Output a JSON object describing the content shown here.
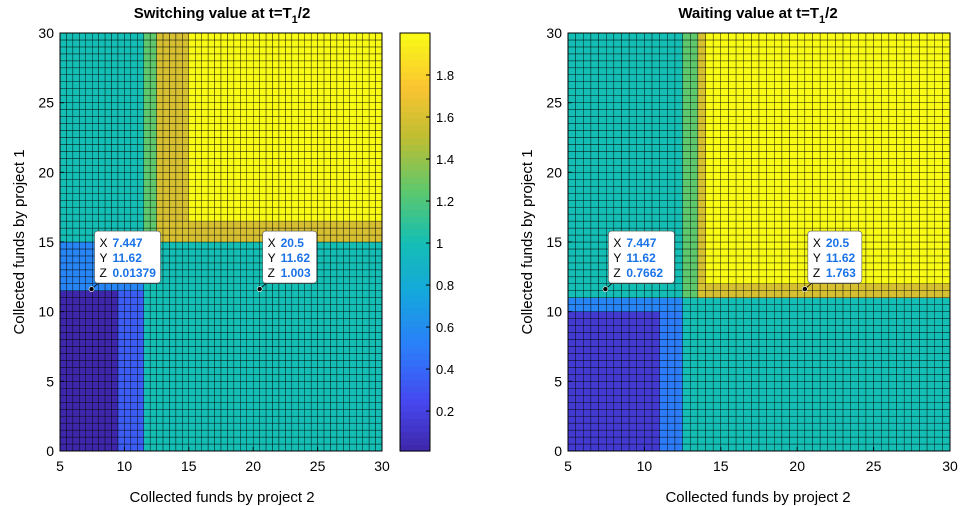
{
  "chart_data": [
    {
      "type": "heatmap",
      "title_main": "Switching value at t=T",
      "title_sub": "1",
      "title_end": "/2",
      "xlabel": "Collected funds by project 2",
      "ylabel": "Collected funds by project 1",
      "xlim": [
        5,
        30
      ],
      "ylim": [
        0,
        30
      ],
      "xticks": [
        "5",
        "10",
        "15",
        "20",
        "25",
        "30"
      ],
      "yticks": [
        "0",
        "5",
        "10",
        "15",
        "20",
        "25",
        "30"
      ],
      "grid": "cell edges drawn (shading faceted)",
      "field": {
        "xbreaks": [
          9.5,
          11.5,
          12.5,
          15.0
        ],
        "ybreaks": [
          11.5,
          14.8,
          16.5
        ],
        "low_value": 0.02,
        "mid_low_value": 0.35,
        "band_value": 0.95,
        "base_value": 1.0,
        "high_value": 2.0,
        "edge_value": 1.6
      },
      "datatips": [
        {
          "X": "7.447",
          "Y": "11.62",
          "Z": "0.01379"
        },
        {
          "X": "20.5",
          "Y": "11.62",
          "Z": "1.003"
        }
      ],
      "colorbar": {
        "ticks": [
          "0.2",
          "0.4",
          "0.6",
          "0.8",
          "1",
          "1.2",
          "1.4",
          "1.6",
          "1.8"
        ],
        "range": [
          0.01,
          2.0
        ]
      }
    },
    {
      "type": "heatmap",
      "title_main": "Waiting value at t=T",
      "title_sub": "1",
      "title_end": "/2",
      "xlabel": "Collected funds by project 2",
      "ylabel": "Collected funds by project 1",
      "xlim": [
        5,
        30
      ],
      "ylim": [
        0,
        30
      ],
      "xticks": [
        "5",
        "10",
        "15",
        "20",
        "25",
        "30"
      ],
      "yticks": [
        "0",
        "5",
        "10",
        "15",
        "20",
        "25",
        "30"
      ],
      "grid": "cell edges drawn (shading faceted)",
      "field": {
        "xbreaks": [
          11.0,
          12.5,
          13.5,
          14.0
        ],
        "ybreaks": [
          10.0,
          11.0,
          12.0
        ],
        "low_value": 0.15,
        "mid_low_value": 0.5,
        "band_value": 0.95,
        "base_value": 1.0,
        "high_value": 2.0,
        "edge_value": 1.6
      },
      "datatips": [
        {
          "X": "7.447",
          "Y": "11.62",
          "Z": "0.7662"
        },
        {
          "X": "20.5",
          "Y": "11.62",
          "Z": "1.763"
        }
      ]
    }
  ],
  "labels": {
    "x": "X",
    "y": "Y",
    "z": "Z"
  },
  "colors": {
    "colormap": "parula",
    "datatip_value": "#1a73e8",
    "cell_edge": "#000000"
  }
}
